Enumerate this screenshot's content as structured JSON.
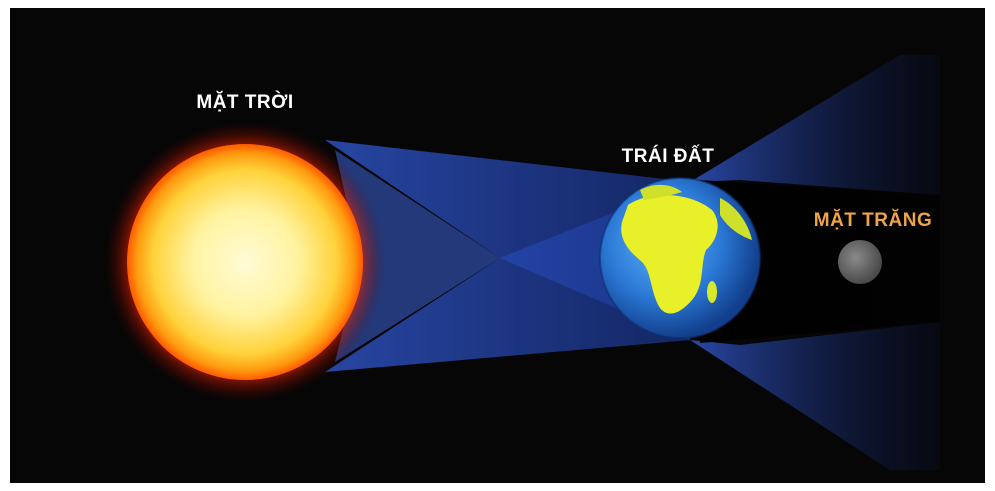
{
  "labels": {
    "sun": "MẶT TRỜI",
    "earth": "TRÁI ĐẤT",
    "moon": "MẶT TRĂNG"
  },
  "colors": {
    "background": "#070606",
    "frame": "#ffffff",
    "sun_label": "#ffffff",
    "earth_label": "#ffffff",
    "moon_label": "#f0a44a",
    "light_beam": "#2f55c8",
    "sun_core": "#fff6a8",
    "sun_rim": "#ff5a00",
    "earth_ocean": "#2f7fd8",
    "earth_land": "#e8f02a",
    "moon": "#6d6d6d"
  }
}
